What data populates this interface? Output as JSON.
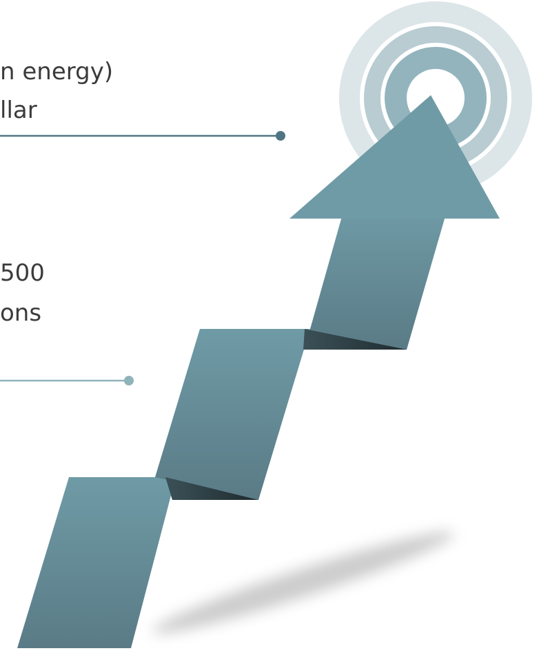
{
  "text_blocks": [
    {
      "lines": [
        "n energy)",
        "llar"
      ]
    },
    {
      "lines": [
        "500",
        "ons"
      ]
    }
  ]
}
